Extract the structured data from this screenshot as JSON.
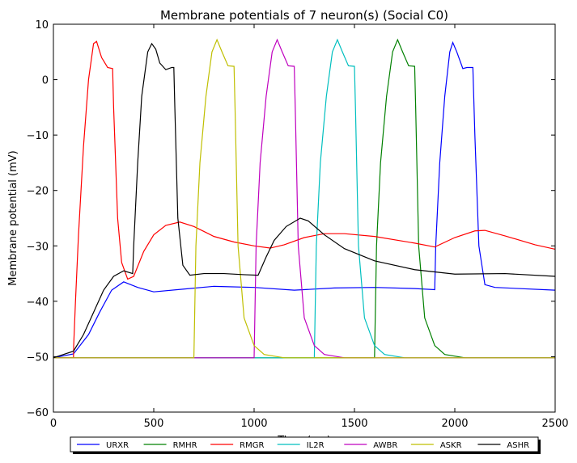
{
  "chart_data": {
    "type": "line",
    "title": "Membrane potentials of 7 neuron(s) (Social C0)",
    "xlabel": "Time (ms)",
    "ylabel": "Membrane potential (mV)",
    "xlim": [
      0,
      2500
    ],
    "ylim": [
      -60,
      10
    ],
    "xticks": [
      0,
      500,
      1000,
      1500,
      2000,
      2500
    ],
    "yticks": [
      {
        "value": -60,
        "label": "−60"
      },
      {
        "value": -50,
        "label": "−50"
      },
      {
        "value": -40,
        "label": "−40"
      },
      {
        "value": -30,
        "label": "−30"
      },
      {
        "value": -20,
        "label": "−20"
      },
      {
        "value": -10,
        "label": "−10"
      },
      0,
      10
    ],
    "legend": "bottom",
    "series": [
      {
        "name": "URXR",
        "color": "#0000ff",
        "x": [
          0,
          100,
          175,
          230,
          290,
          350,
          420,
          500,
          650,
          800,
          1000,
          1200,
          1400,
          1600,
          1800,
          1900,
          1905,
          1925,
          1950,
          1975,
          1990,
          2010,
          2040,
          2060,
          2090,
          2100,
          2120,
          2150,
          2200,
          2500
        ],
        "values": [
          -50.2,
          -49.5,
          -46,
          -42,
          -38,
          -36.5,
          -37.5,
          -38.3,
          -37.8,
          -37.3,
          -37.5,
          -38,
          -37.6,
          -37.5,
          -37.7,
          -37.9,
          -30,
          -15,
          -3,
          5,
          6.7,
          5,
          2,
          2.2,
          2.2,
          -10,
          -30,
          -37,
          -37.5,
          -38
        ]
      },
      {
        "name": "RMHR",
        "color": "#008000",
        "x": [
          0,
          1600,
          1610,
          1630,
          1660,
          1690,
          1715,
          1740,
          1770,
          1800,
          1805,
          1820,
          1850,
          1900,
          1950,
          2050,
          2500
        ],
        "values": [
          -50.2,
          -50.2,
          -30,
          -15,
          -3,
          5,
          7.2,
          5,
          2.5,
          2.4,
          -5,
          -30,
          -43,
          -48,
          -49.6,
          -50.2,
          -50.2
        ]
      },
      {
        "name": "RMGR",
        "color": "#ff0000",
        "x": [
          0,
          100,
          101,
          110,
          125,
          150,
          175,
          200,
          215,
          240,
          270,
          295,
          300,
          320,
          340,
          370,
          400,
          450,
          500,
          560,
          630,
          700,
          800,
          900,
          1000,
          1080,
          1150,
          1250,
          1350,
          1450,
          1600,
          1800,
          1900,
          2000,
          2100,
          2150,
          2250,
          2400,
          2500
        ],
        "values": [
          -50.2,
          -50.2,
          -48,
          -40,
          -28,
          -12,
          0,
          6.5,
          6.9,
          4,
          2.2,
          2,
          -5,
          -25,
          -33,
          -36,
          -35.5,
          -31,
          -28,
          -26.3,
          -25.7,
          -26.5,
          -28.3,
          -29.3,
          -30,
          -30.4,
          -29.8,
          -28.5,
          -27.8,
          -27.8,
          -28.3,
          -29.5,
          -30.2,
          -28.5,
          -27.3,
          -27.2,
          -28.2,
          -29.8,
          -30.6
        ]
      },
      {
        "name": "IL2R",
        "color": "#00bfbf",
        "x": [
          0,
          1300,
          1310,
          1330,
          1360,
          1390,
          1415,
          1440,
          1470,
          1500,
          1505,
          1520,
          1550,
          1600,
          1650,
          1750,
          2500
        ],
        "values": [
          -50.2,
          -50.2,
          -30,
          -15,
          -3,
          5,
          7.2,
          5,
          2.5,
          2.4,
          -5,
          -30,
          -43,
          -48,
          -49.6,
          -50.2,
          -50.2
        ]
      },
      {
        "name": "AWBR",
        "color": "#bf00bf",
        "x": [
          0,
          1000,
          1010,
          1030,
          1060,
          1090,
          1115,
          1140,
          1170,
          1200,
          1205,
          1220,
          1250,
          1300,
          1350,
          1450,
          2500
        ],
        "values": [
          -50.2,
          -50.2,
          -30,
          -15,
          -3,
          5,
          7.2,
          5,
          2.5,
          2.4,
          -5,
          -30,
          -43,
          -48,
          -49.6,
          -50.2,
          -50.2
        ]
      },
      {
        "name": "ASKR",
        "color": "#bfbf00",
        "x": [
          0,
          700,
          710,
          730,
          760,
          790,
          815,
          840,
          870,
          900,
          905,
          920,
          950,
          1000,
          1050,
          1150,
          2500
        ],
        "values": [
          -50.2,
          -50.2,
          -30,
          -15,
          -3,
          5,
          7.2,
          5,
          2.5,
          2.4,
          -5,
          -30,
          -43,
          -48,
          -49.6,
          -50.2,
          -50.2
        ]
      },
      {
        "name": "ASHR",
        "color": "#000000",
        "x": [
          0,
          100,
          150,
          200,
          250,
          300,
          350,
          395,
          400,
          420,
          440,
          470,
          490,
          510,
          530,
          560,
          590,
          600,
          605,
          620,
          645,
          680,
          750,
          850,
          950,
          1020,
          1060,
          1100,
          1160,
          1230,
          1270,
          1350,
          1450,
          1600,
          1800,
          2000,
          2250,
          2500
        ],
        "values": [
          -50.2,
          -49,
          -46,
          -42,
          -38,
          -35.5,
          -34.5,
          -35,
          -30,
          -15,
          -3,
          5,
          6.5,
          5.5,
          3,
          1.8,
          2.2,
          2.2,
          -5,
          -25,
          -33.5,
          -35.3,
          -35,
          -35,
          -35.2,
          -35.3,
          -32,
          -29,
          -26.5,
          -25,
          -25.5,
          -28,
          -30.5,
          -32.7,
          -34.3,
          -35.1,
          -35,
          -35.5
        ]
      }
    ]
  }
}
